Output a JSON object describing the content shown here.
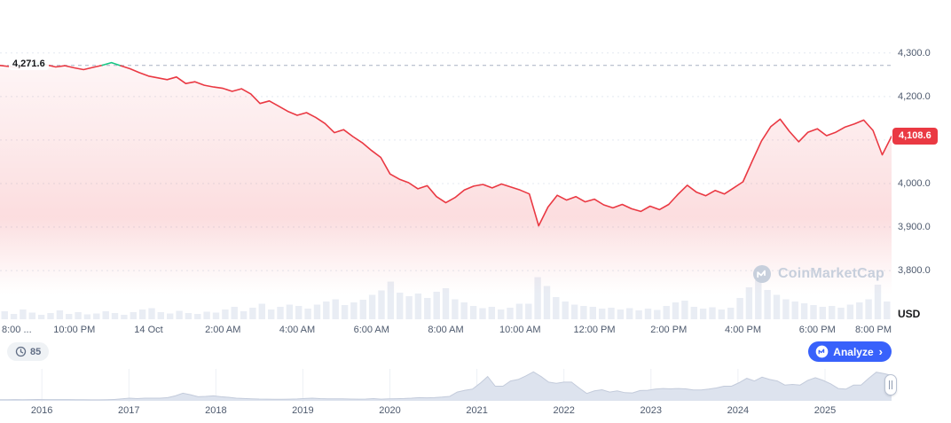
{
  "meta": {
    "watermark": "CoinMarketCap"
  },
  "colors": {
    "up": "#16c784",
    "down": "#ea3943",
    "accent_blue": "#3861fb",
    "axis_text": "#4e5a6e",
    "grid": "#e4e9f0",
    "volume_bar": "#e9edf4",
    "nav_fill": "#dde3ee"
  },
  "open_price": {
    "label": "4,271.6",
    "value": 4271.6
  },
  "last_price": {
    "label": "4,108.6",
    "value": 4108.6
  },
  "price_axis": {
    "unit": "USD",
    "tick_labels": [
      "4,300.0",
      "4,200.0",
      "4,000.0",
      "3,900.0",
      "3,800.0"
    ],
    "tick_values": [
      4300,
      4200,
      4000,
      3900,
      3800
    ],
    "gridline_values": [
      4300,
      4200,
      4100,
      4000,
      3900,
      3800
    ]
  },
  "time_axis": {
    "labels": [
      "8:00 ...",
      "10:00 PM",
      "14 Oct",
      "2:00 AM",
      "4:00 AM",
      "6:00 AM",
      "8:00 AM",
      "10:00 AM",
      "12:00 PM",
      "2:00 PM",
      "4:00 PM",
      "6:00 PM",
      "8:00 PM"
    ]
  },
  "controls": {
    "history_count": "85",
    "analyze_label": "Analyze",
    "analyze_chevron": "›"
  },
  "navigator": {
    "years": [
      "2016",
      "2017",
      "2018",
      "2019",
      "2020",
      "2021",
      "2022",
      "2023",
      "2024",
      "2025"
    ]
  },
  "chart_data": [
    {
      "type": "area",
      "name": "price-24h",
      "unit": "USD",
      "open": 4271.6,
      "last": 4108.6,
      "x_start": "8:00 PM (13 Oct)",
      "x_end": "8:00 PM (14 Oct)",
      "interval_minutes": 15,
      "ylim": [
        3688,
        4422
      ],
      "values": [
        4271.6,
        4269,
        4266,
        4272,
        4277,
        4273,
        4268,
        4271,
        4266,
        4262,
        4267,
        4272,
        4278,
        4271,
        4264,
        4255,
        4247,
        4243,
        4239,
        4245,
        4230,
        4234,
        4226,
        4222,
        4219,
        4212,
        4218,
        4206,
        4184,
        4190,
        4178,
        4166,
        4157,
        4163,
        4152,
        4138,
        4117,
        4124,
        4108,
        4094,
        4076,
        4060,
        4022,
        4010,
        4002,
        3988,
        3995,
        3970,
        3956,
        3968,
        3985,
        3994,
        3998,
        3990,
        3999,
        3992,
        3985,
        3976,
        3903,
        3946,
        3973,
        3962,
        3970,
        3958,
        3964,
        3951,
        3944,
        3952,
        3942,
        3936,
        3948,
        3940,
        3952,
        3975,
        3996,
        3980,
        3972,
        3984,
        3976,
        3990,
        4004,
        4052,
        4098,
        4131,
        4148,
        4120,
        4096,
        4118,
        4126,
        4110,
        4118,
        4130,
        4137,
        4146,
        4122,
        4066,
        4108.6
      ],
      "volume_relative": [
        0.18,
        0.12,
        0.22,
        0.15,
        0.1,
        0.14,
        0.2,
        0.12,
        0.16,
        0.11,
        0.13,
        0.18,
        0.14,
        0.1,
        0.16,
        0.22,
        0.25,
        0.16,
        0.13,
        0.19,
        0.14,
        0.12,
        0.17,
        0.15,
        0.22,
        0.28,
        0.18,
        0.26,
        0.35,
        0.22,
        0.28,
        0.33,
        0.3,
        0.24,
        0.33,
        0.4,
        0.45,
        0.32,
        0.38,
        0.44,
        0.55,
        0.65,
        0.85,
        0.6,
        0.52,
        0.58,
        0.48,
        0.62,
        0.7,
        0.45,
        0.38,
        0.3,
        0.25,
        0.28,
        0.22,
        0.26,
        0.35,
        0.35,
        0.95,
        0.75,
        0.5,
        0.4,
        0.33,
        0.3,
        0.28,
        0.24,
        0.26,
        0.22,
        0.25,
        0.2,
        0.24,
        0.21,
        0.3,
        0.38,
        0.42,
        0.28,
        0.24,
        0.27,
        0.22,
        0.26,
        0.48,
        0.72,
        0.88,
        0.66,
        0.55,
        0.45,
        0.4,
        0.36,
        0.32,
        0.28,
        0.3,
        0.26,
        0.33,
        0.38,
        0.45,
        0.78,
        0.4
      ]
    },
    {
      "type": "area",
      "name": "history-navigator",
      "x_start": "2016",
      "x_end": "2025",
      "interval": "monthly",
      "values_relative": [
        0.005,
        0.01,
        0.012,
        0.01,
        0.012,
        0.014,
        0.012,
        0.011,
        0.011,
        0.011,
        0.01,
        0.008,
        0.002,
        0.003,
        0.008,
        0.015,
        0.04,
        0.06,
        0.045,
        0.06,
        0.06,
        0.06,
        0.08,
        0.14,
        0.23,
        0.18,
        0.11,
        0.12,
        0.14,
        0.11,
        0.09,
        0.06,
        0.05,
        0.04,
        0.03,
        0.028,
        0.022,
        0.025,
        0.028,
        0.033,
        0.05,
        0.06,
        0.045,
        0.037,
        0.036,
        0.036,
        0.03,
        0.026,
        0.03,
        0.045,
        0.028,
        0.04,
        0.042,
        0.047,
        0.06,
        0.08,
        0.072,
        0.078,
        0.096,
        0.12,
        0.27,
        0.33,
        0.37,
        0.57,
        0.8,
        0.47,
        0.47,
        0.65,
        0.7,
        0.82,
        0.96,
        0.8,
        0.61,
        0.57,
        0.61,
        0.61,
        0.41,
        0.22,
        0.31,
        0.35,
        0.27,
        0.31,
        0.25,
        0.24,
        0.32,
        0.33,
        0.37,
        0.39,
        0.38,
        0.39,
        0.38,
        0.34,
        0.34,
        0.37,
        0.41,
        0.47,
        0.47,
        0.59,
        0.74,
        0.65,
        0.78,
        0.7,
        0.65,
        0.51,
        0.53,
        0.51,
        0.67,
        0.76,
        0.67,
        0.55,
        0.39,
        0.37,
        0.51,
        0.51,
        0.74,
        0.95,
        0.9,
        0.84
      ]
    }
  ]
}
